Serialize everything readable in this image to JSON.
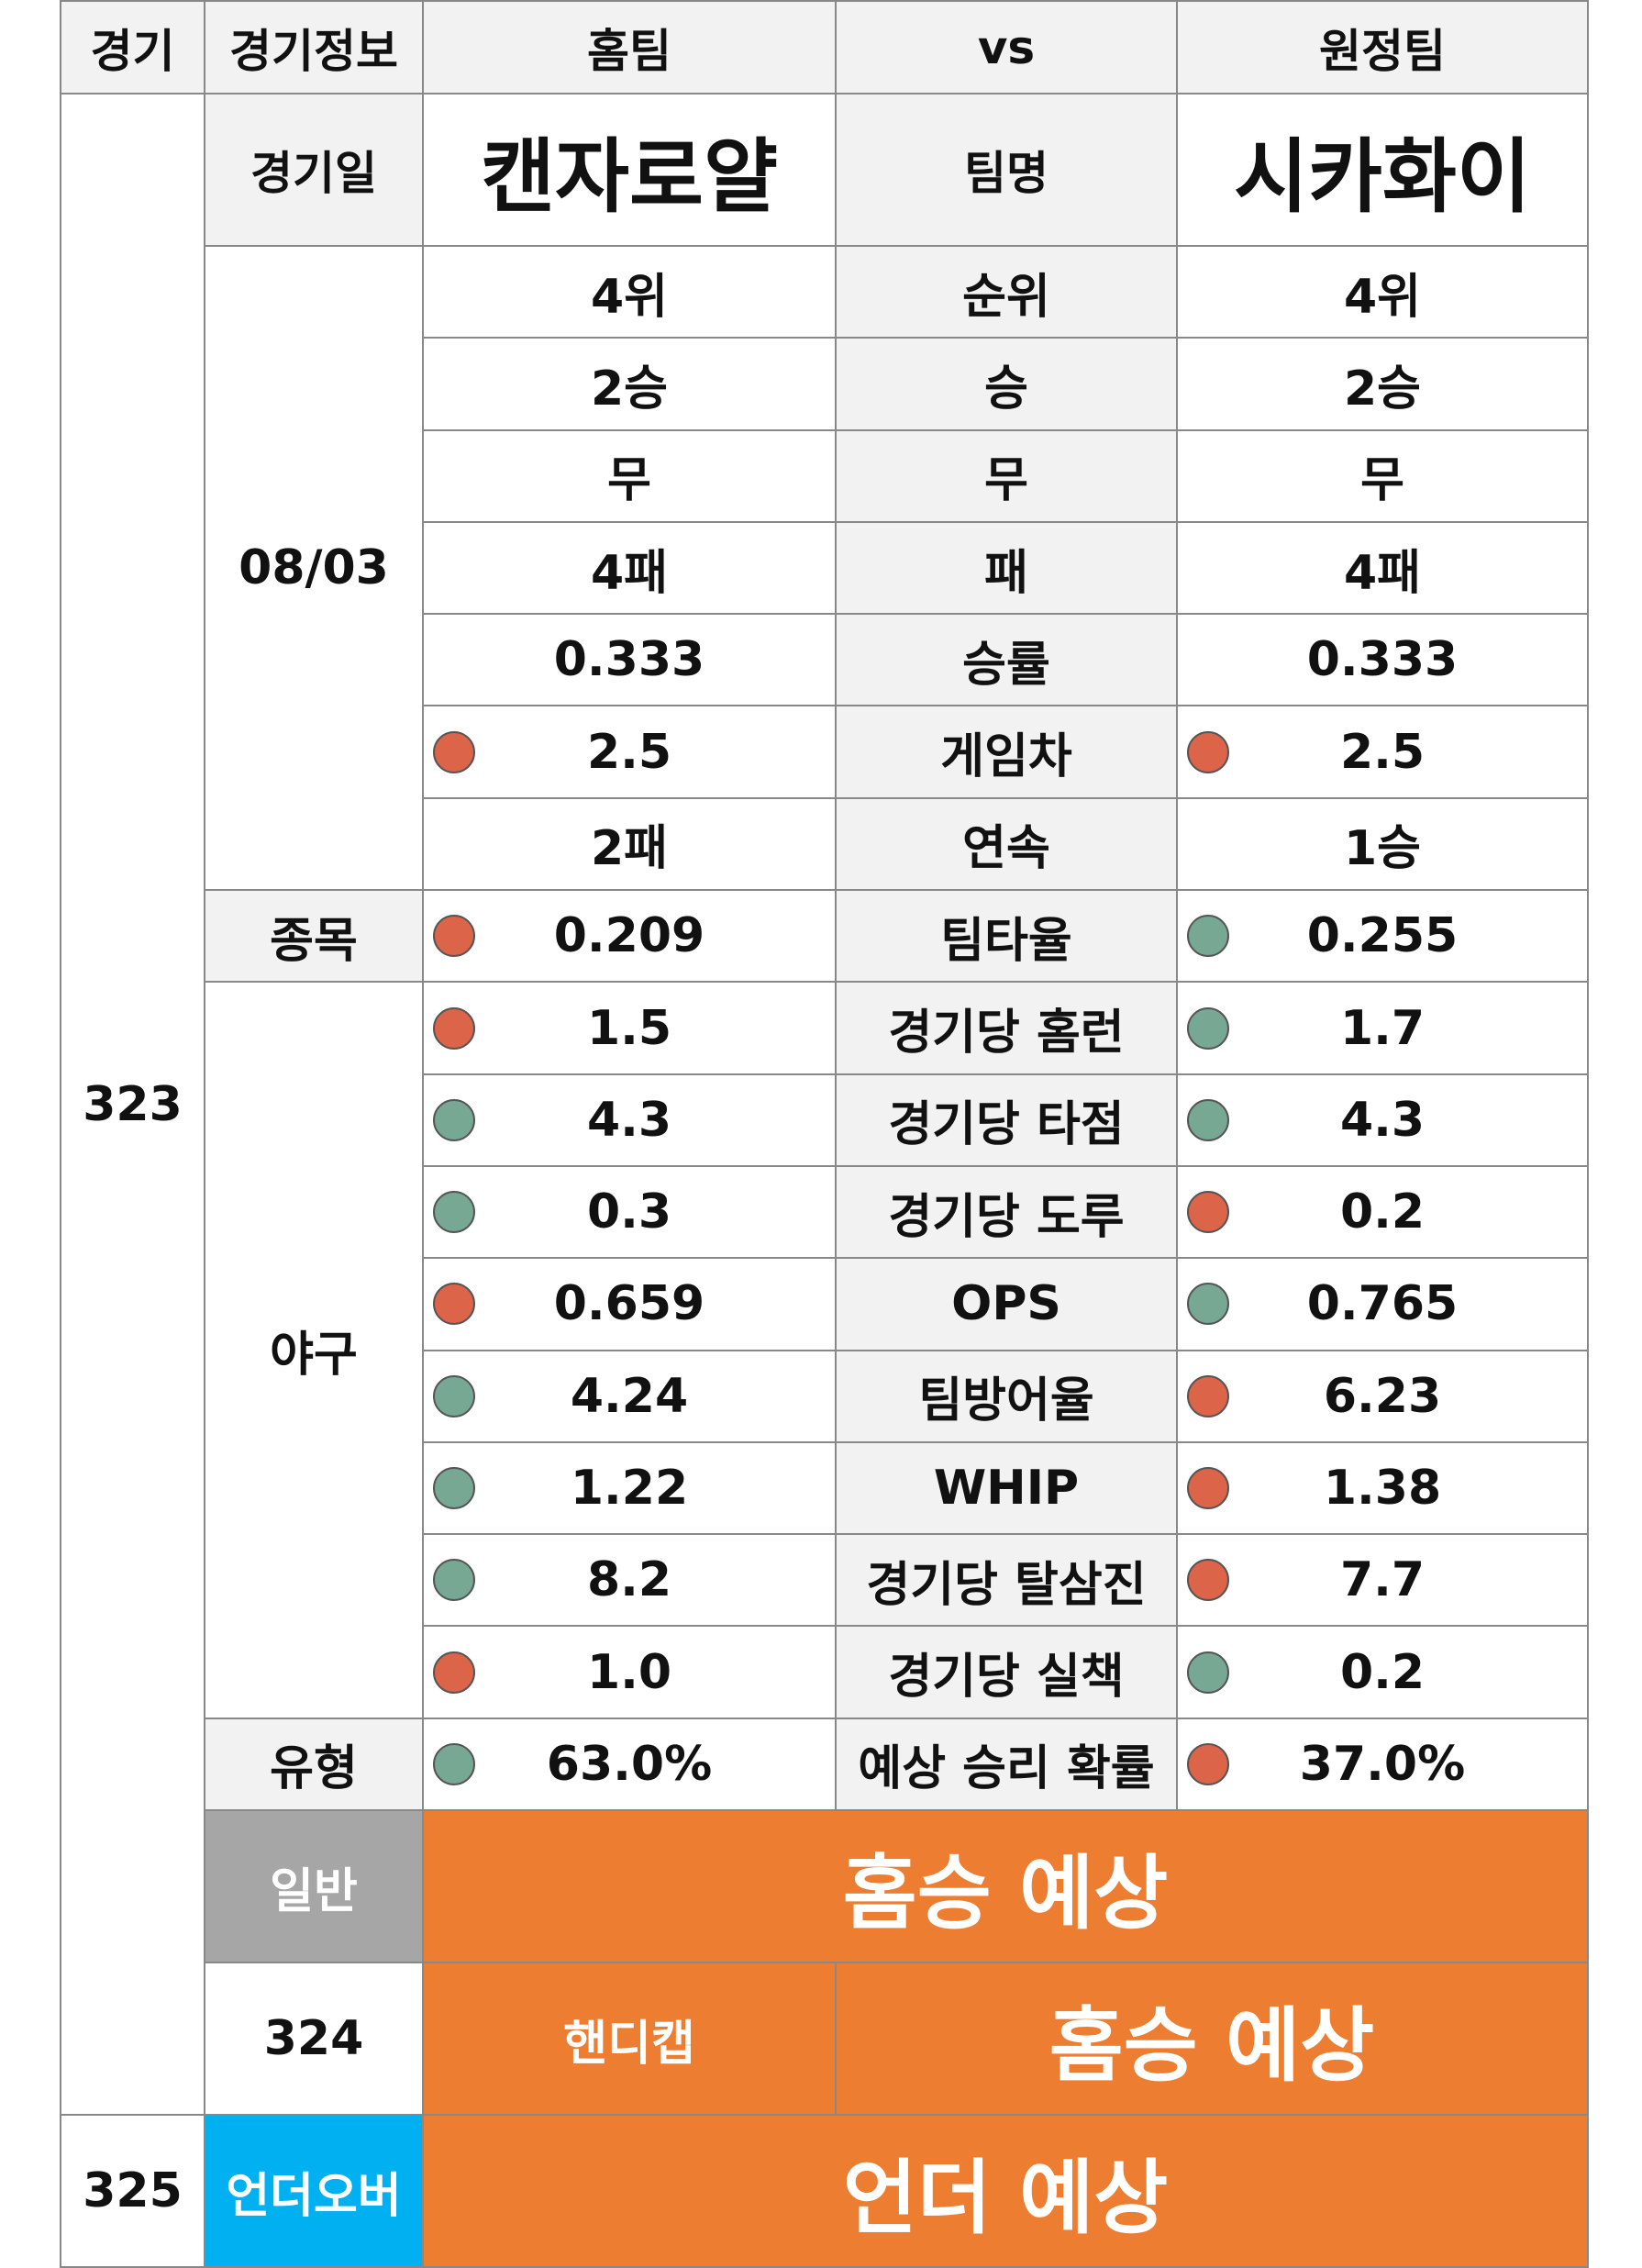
{
  "header": {
    "game": "경기",
    "info": "경기정보",
    "home": "홈팀",
    "vs": "vs",
    "away": "원정팀"
  },
  "match": {
    "number": "323",
    "date_label": "경기일",
    "date": "08/03",
    "home_team": "캔자로얄",
    "team_label": "팀명",
    "away_team": "시카화이",
    "sport_label": "종목",
    "sport": "야구",
    "type_label": "유형"
  },
  "stats": [
    {
      "label": "순위",
      "home": "4위",
      "away": "4위",
      "home_dot": "",
      "away_dot": ""
    },
    {
      "label": "승",
      "home": "2승",
      "away": "2승",
      "home_dot": "",
      "away_dot": ""
    },
    {
      "label": "무",
      "home": "무",
      "away": "무",
      "home_dot": "",
      "away_dot": ""
    },
    {
      "label": "패",
      "home": "4패",
      "away": "4패",
      "home_dot": "",
      "away_dot": ""
    },
    {
      "label": "승률",
      "home": "0.333",
      "away": "0.333",
      "home_dot": "",
      "away_dot": ""
    },
    {
      "label": "게임차",
      "home": "2.5",
      "away": "2.5",
      "home_dot": "red",
      "away_dot": "red"
    },
    {
      "label": "연속",
      "home": "2패",
      "away": "1승",
      "home_dot": "",
      "away_dot": ""
    },
    {
      "label": "팀타율",
      "home": "0.209",
      "away": "0.255",
      "home_dot": "red",
      "away_dot": "green"
    },
    {
      "label": "경기당 홈런",
      "home": "1.5",
      "away": "1.7",
      "home_dot": "red",
      "away_dot": "green"
    },
    {
      "label": "경기당 타점",
      "home": "4.3",
      "away": "4.3",
      "home_dot": "green",
      "away_dot": "green"
    },
    {
      "label": "경기당 도루",
      "home": "0.3",
      "away": "0.2",
      "home_dot": "green",
      "away_dot": "red"
    },
    {
      "label": "OPS",
      "home": "0.659",
      "away": "0.765",
      "home_dot": "red",
      "away_dot": "green"
    },
    {
      "label": "팀방어율",
      "home": "4.24",
      "away": "6.23",
      "home_dot": "green",
      "away_dot": "red"
    },
    {
      "label": "WHIP",
      "home": "1.22",
      "away": "1.38",
      "home_dot": "green",
      "away_dot": "red"
    },
    {
      "label": "경기당 탈삼진",
      "home": "8.2",
      "away": "7.7",
      "home_dot": "green",
      "away_dot": "red"
    },
    {
      "label": "경기당 실책",
      "home": "1.0",
      "away": "0.2",
      "home_dot": "red",
      "away_dot": "green"
    },
    {
      "label": "예상 승리 확률",
      "home": "63.0%",
      "away": "37.0%",
      "home_dot": "green",
      "away_dot": "red"
    }
  ],
  "predictions": [
    {
      "number": "323",
      "type": "일반",
      "result": "홈승 예상"
    },
    {
      "number": "324",
      "type": "핸디캡",
      "result": "홈승 예상"
    },
    {
      "number": "325",
      "type": "언더오버",
      "result": "언더 예상"
    }
  ],
  "colors": {
    "orange": "#ed7d31",
    "gray": "#a6a6a6",
    "blue": "#00b0f0",
    "dot_red": "#dc6448",
    "dot_green": "#76a893"
  }
}
